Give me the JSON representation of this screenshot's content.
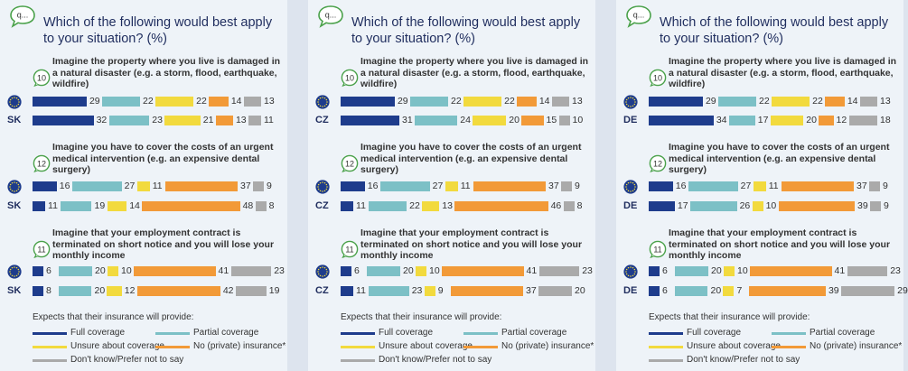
{
  "title": "Which of the following would best apply to your situation? (%)",
  "q_icon_text": "q...",
  "colors": {
    "full": "#1e3c8c",
    "partial": "#7cc0c6",
    "unsure": "#f2da3e",
    "none": "#f29a38",
    "dk": "#aaaaaa",
    "accent_green": "#4aa14a",
    "title_navy": "#1f2d5e"
  },
  "sections": [
    {
      "number": "10",
      "title": "Imagine the property where you live is damaged in a natural disaster (e.g. a storm, flood, earthquake, wildfire)"
    },
    {
      "number": "12",
      "title": "Imagine you have to cover the costs of an urgent medical intervention (e.g. an expensive dental surgery)"
    },
    {
      "number": "11",
      "title": "Imagine that your employment contract is terminated on short notice and you will lose your monthly income"
    }
  ],
  "legend": {
    "title": "Expects that their insurance will provide:",
    "items": [
      {
        "key": "full",
        "label": "Full coverage"
      },
      {
        "key": "partial",
        "label": "Partial coverage"
      },
      {
        "key": "unsure",
        "label": "Unsure about coverage"
      },
      {
        "key": "none",
        "label": "No (private) insurance*"
      },
      {
        "key": "dk",
        "label": "Don't know/Prefer not to say"
      }
    ]
  },
  "chart_data": [
    {
      "type": "bar",
      "stacked": true,
      "orientation": "horizontal",
      "title": "Which of the following would best apply to your situation? (%)",
      "series_names": [
        "Full coverage",
        "Partial coverage",
        "Unsure about coverage",
        "No (private) insurance*",
        "Don't know/Prefer not to say"
      ],
      "sections": [
        {
          "rows": [
            {
              "label": "EU",
              "values": [
                29,
                22,
                22,
                14,
                13
              ]
            },
            {
              "label": "SK",
              "values": [
                32,
                23,
                21,
                13,
                11
              ]
            }
          ]
        },
        {
          "rows": [
            {
              "label": "EU",
              "values": [
                16,
                27,
                11,
                37,
                9
              ]
            },
            {
              "label": "SK",
              "values": [
                11,
                19,
                14,
                48,
                8
              ]
            }
          ]
        },
        {
          "rows": [
            {
              "label": "EU",
              "values": [
                6,
                20,
                10,
                41,
                23
              ]
            },
            {
              "label": "SK",
              "values": [
                8,
                20,
                12,
                42,
                19
              ]
            }
          ]
        }
      ]
    },
    {
      "type": "bar",
      "stacked": true,
      "orientation": "horizontal",
      "title": "Which of the following would best apply to your situation? (%)",
      "series_names": [
        "Full coverage",
        "Partial coverage",
        "Unsure about coverage",
        "No (private) insurance*",
        "Don't know/Prefer not to say"
      ],
      "sections": [
        {
          "rows": [
            {
              "label": "EU",
              "values": [
                29,
                22,
                22,
                14,
                13
              ]
            },
            {
              "label": "CZ",
              "values": [
                31,
                24,
                20,
                15,
                10
              ]
            }
          ]
        },
        {
          "rows": [
            {
              "label": "EU",
              "values": [
                16,
                27,
                11,
                37,
                9
              ]
            },
            {
              "label": "CZ",
              "values": [
                11,
                22,
                13,
                46,
                8
              ]
            }
          ]
        },
        {
          "rows": [
            {
              "label": "EU",
              "values": [
                6,
                20,
                10,
                41,
                23
              ]
            },
            {
              "label": "CZ",
              "values": [
                11,
                23,
                9,
                37,
                20
              ]
            }
          ]
        }
      ]
    },
    {
      "type": "bar",
      "stacked": true,
      "orientation": "horizontal",
      "title": "Which of the following would best apply to your situation? (%)",
      "series_names": [
        "Full coverage",
        "Partial coverage",
        "Unsure about coverage",
        "No (private) insurance*",
        "Don't know/Prefer not to say"
      ],
      "sections": [
        {
          "rows": [
            {
              "label": "EU",
              "values": [
                29,
                22,
                22,
                14,
                13
              ]
            },
            {
              "label": "DE",
              "values": [
                34,
                17,
                20,
                12,
                18
              ]
            }
          ]
        },
        {
          "rows": [
            {
              "label": "EU",
              "values": [
                16,
                27,
                11,
                37,
                9
              ]
            },
            {
              "label": "DE",
              "values": [
                17,
                26,
                10,
                39,
                9
              ]
            }
          ]
        },
        {
          "rows": [
            {
              "label": "EU",
              "values": [
                6,
                20,
                10,
                41,
                23
              ]
            },
            {
              "label": "DE",
              "values": [
                6,
                20,
                7,
                39,
                29
              ]
            }
          ]
        }
      ]
    }
  ]
}
